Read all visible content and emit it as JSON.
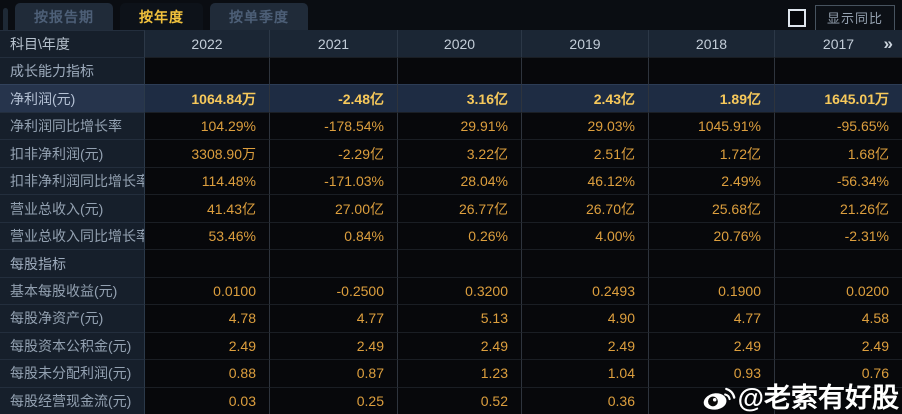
{
  "colors": {
    "accent_gold": "#f2c23d",
    "value_orange": "#dd9f3e",
    "highlight_row_bg": "#1e2c43",
    "label_column_bg": "#161f2b",
    "header_row_bg": "#1b2634"
  },
  "tabs": [
    {
      "id": "by-report-period",
      "label": "按报告期",
      "active": false
    },
    {
      "id": "by-year",
      "label": "按年度",
      "active": true
    },
    {
      "id": "by-single-quarter",
      "label": "按单季度",
      "active": false
    }
  ],
  "controls": {
    "show_yoy_label": "显示同比",
    "show_yoy_checked": false
  },
  "table": {
    "header": {
      "label": "科目\\年度",
      "years": [
        "2022",
        "2021",
        "2020",
        "2019",
        "2018",
        "2017"
      ],
      "more_label": "»"
    },
    "rows": [
      {
        "type": "section",
        "label": "成长能力指标",
        "values": [
          "",
          "",
          "",
          "",
          "",
          ""
        ]
      },
      {
        "type": "data",
        "highlight": true,
        "label": "净利润(元)",
        "values": [
          "1064.84万",
          "-2.48亿",
          "3.16亿",
          "2.43亿",
          "1.89亿",
          "1645.01万"
        ]
      },
      {
        "type": "data",
        "label": "净利润同比增长率",
        "values": [
          "104.29%",
          "-178.54%",
          "29.91%",
          "29.03%",
          "1045.91%",
          "-95.65%"
        ]
      },
      {
        "type": "data",
        "label": "扣非净利润(元)",
        "values": [
          "3308.90万",
          "-2.29亿",
          "3.22亿",
          "2.51亿",
          "1.72亿",
          "1.68亿"
        ]
      },
      {
        "type": "data",
        "label": "扣非净利润同比增长率",
        "values": [
          "114.48%",
          "-171.03%",
          "28.04%",
          "46.12%",
          "2.49%",
          "-56.34%"
        ]
      },
      {
        "type": "data",
        "label": "营业总收入(元)",
        "values": [
          "41.43亿",
          "27.00亿",
          "26.77亿",
          "26.70亿",
          "25.68亿",
          "21.26亿"
        ]
      },
      {
        "type": "data",
        "label": "营业总收入同比增长率",
        "values": [
          "53.46%",
          "0.84%",
          "0.26%",
          "4.00%",
          "20.76%",
          "-2.31%"
        ]
      },
      {
        "type": "section",
        "label": "每股指标",
        "values": [
          "",
          "",
          "",
          "",
          "",
          ""
        ]
      },
      {
        "type": "data",
        "label": "基本每股收益(元)",
        "values": [
          "0.0100",
          "-0.2500",
          "0.3200",
          "0.2493",
          "0.1900",
          "0.0200"
        ]
      },
      {
        "type": "data",
        "label": "每股净资产(元)",
        "values": [
          "4.78",
          "4.77",
          "5.13",
          "4.90",
          "4.77",
          "4.58"
        ]
      },
      {
        "type": "data",
        "label": "每股资本公积金(元)",
        "values": [
          "2.49",
          "2.49",
          "2.49",
          "2.49",
          "2.49",
          "2.49"
        ]
      },
      {
        "type": "data",
        "label": "每股未分配利润(元)",
        "values": [
          "0.88",
          "0.87",
          "1.23",
          "1.04",
          "0.93",
          "0.76"
        ]
      },
      {
        "type": "data",
        "label": "每股经营现金流(元)",
        "values": [
          "0.03",
          "0.25",
          "0.52",
          "0.36",
          "",
          ""
        ]
      }
    ]
  },
  "watermark": {
    "icon": "weibo-icon",
    "text": "@老索有好股"
  }
}
